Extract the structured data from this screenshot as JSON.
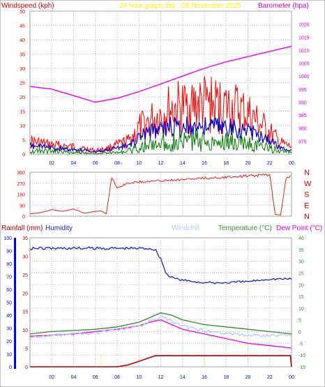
{
  "header": {
    "windspeed_label": "Windspeed (kph)",
    "graph_title": "24 hour graph day : 08 November 2025",
    "barometer_label": "Barometer (hpa)"
  },
  "bottom_header": {
    "rainfall_label": "Rainfall (mm)",
    "humidity_label": "Humidity",
    "windchill_label": "Windchill",
    "temperature_label": "Temperature (°C)",
    "dewpoint_label": "Dew Point (°C)"
  },
  "colors": {
    "gust": "#ff0000",
    "average": "#0000cc",
    "wind_low": "#007700",
    "barometer": "#ee00ee",
    "direction": "#dd2222",
    "humidity": "#2222bb",
    "temperature": "#338833",
    "dewpoint": "#ee00ee",
    "windchill": "#aaccee",
    "rainfall": "#aa0000",
    "title": "#ffee00",
    "grid": "#b0b0b0"
  },
  "chart_data": [
    {
      "type": "line",
      "name": "wind-barometer",
      "x_ticks": [
        "02",
        "04",
        "06",
        "08",
        "10",
        "12",
        "14",
        "16",
        "18",
        "20",
        "22",
        "00"
      ],
      "y_left_ticks": [
        "0",
        "5",
        "10",
        "15",
        "20",
        "25",
        "30",
        "35",
        "40",
        "45",
        "50"
      ],
      "y_left_range": [
        0,
        50
      ],
      "y_right_ticks": [
        "975",
        "980",
        "985",
        "990",
        "995",
        "1000",
        "1005",
        "1010",
        "1015",
        "1020"
      ],
      "y_right_range": [
        970,
        1025
      ],
      "series": [
        {
          "name": "Windspeed (kph)",
          "key": "gust",
          "x": [
            0,
            2,
            4,
            5,
            6,
            7,
            8,
            9,
            10,
            11,
            12,
            13,
            14,
            15,
            16,
            17,
            18,
            19,
            20,
            21,
            22,
            23,
            24
          ],
          "y": [
            7,
            5,
            4,
            3,
            2,
            3,
            5,
            7,
            14,
            18,
            22,
            25,
            26,
            27,
            28,
            27,
            26,
            25,
            22,
            17,
            12,
            6,
            4
          ]
        },
        {
          "name": "Windspeed (kph)",
          "key": "average",
          "x": [
            0,
            2,
            4,
            5,
            6,
            7,
            8,
            9,
            10,
            11,
            12,
            13,
            14,
            15,
            16,
            17,
            18,
            19,
            20,
            21,
            22,
            23,
            24
          ],
          "y": [
            4,
            3,
            2,
            2,
            1,
            2,
            3,
            4,
            8,
            11,
            12,
            13,
            13,
            14,
            13,
            14,
            13,
            12,
            11,
            9,
            7,
            3,
            2
          ]
        },
        {
          "name": "Windspeed (kph)",
          "key": "wind_low",
          "x": [
            0,
            2,
            4,
            5,
            6,
            7,
            8,
            9,
            10,
            11,
            12,
            13,
            14,
            15,
            16,
            17,
            18,
            19,
            20,
            21,
            22,
            23,
            24
          ],
          "y": [
            2,
            2,
            1,
            1,
            0,
            1,
            1,
            2,
            4,
            6,
            7,
            8,
            8,
            9,
            8,
            9,
            8,
            7,
            7,
            5,
            4,
            2,
            1
          ]
        },
        {
          "name": "Barometer (hpa)",
          "key": "barometer",
          "x": [
            0,
            2,
            4,
            6,
            8,
            10,
            12,
            14,
            16,
            18,
            20,
            22,
            24
          ],
          "y": [
            996,
            995,
            992.5,
            990,
            991.5,
            994,
            997,
            1000,
            1003,
            1005.5,
            1007.5,
            1009.5,
            1011.5
          ]
        }
      ]
    },
    {
      "type": "line",
      "name": "wind-direction",
      "x_ticks": [
        "02",
        "04",
        "06",
        "08",
        "10",
        "12",
        "14",
        "16",
        "18",
        "20",
        "22",
        "00"
      ],
      "y_left_ticks": [
        "0",
        "90",
        "180",
        "270",
        "360"
      ],
      "y_right_ticks": [
        "N",
        "E",
        "S",
        "W",
        "N"
      ],
      "y_range": [
        0,
        360
      ],
      "series": [
        {
          "name": "Wind direction",
          "key": "direction",
          "x": [
            0,
            1,
            2,
            3,
            4,
            5,
            6,
            6.5,
            7,
            7.5,
            8,
            9,
            10,
            12,
            14,
            16,
            18,
            20,
            22,
            22.5,
            23,
            23.5,
            24
          ],
          "y": [
            20,
            30,
            55,
            40,
            60,
            25,
            40,
            45,
            20,
            330,
            240,
            280,
            290,
            300,
            310,
            320,
            330,
            340,
            350,
            15,
            10,
            320,
            340
          ]
        }
      ]
    },
    {
      "type": "line",
      "name": "rain-humidity-temperature",
      "x_ticks": [
        "02",
        "04",
        "06",
        "08",
        "10",
        "12",
        "14",
        "16",
        "18",
        "20",
        "22",
        "00"
      ],
      "y_rain_ticks": [
        "0",
        "5",
        "10",
        "15",
        "20",
        "25",
        "30",
        "35"
      ],
      "y_rain_range": [
        0,
        35
      ],
      "y_humidity_ticks": [
        "0",
        "10",
        "20",
        "30",
        "40",
        "50",
        "60",
        "70",
        "80",
        "90",
        "100"
      ],
      "y_humidity_range": [
        0,
        100
      ],
      "y_temp_ticks": [
        "-15",
        "-10",
        "-5",
        "0",
        "5",
        "10",
        "15",
        "20",
        "25",
        "30",
        "35",
        "40"
      ],
      "y_temp_range": [
        -15,
        40
      ],
      "series": [
        {
          "name": "Humidity",
          "key": "humidity",
          "x": [
            0,
            2,
            4,
            6,
            8,
            10,
            11,
            11.5,
            12,
            12.5,
            13,
            14,
            16,
            18,
            20,
            22,
            24
          ],
          "y": [
            93,
            93,
            93,
            93,
            93,
            93,
            93,
            92,
            85,
            73,
            70,
            68,
            66,
            66,
            67,
            69,
            69
          ]
        },
        {
          "name": "Temperature (°C)",
          "key": "temperature",
          "x": [
            0,
            2,
            4,
            6,
            8,
            10,
            11,
            12,
            13,
            14,
            16,
            18,
            20,
            22,
            24
          ],
          "y": [
            -1,
            0,
            0.5,
            1,
            2,
            4,
            6,
            8,
            7,
            5,
            3,
            2,
            1,
            0,
            -1
          ]
        },
        {
          "name": "Dew Point (°C)",
          "key": "dewpoint",
          "x": [
            0,
            2,
            4,
            6,
            8,
            10,
            11,
            12,
            13,
            14,
            16,
            18,
            20,
            22,
            24
          ],
          "y": [
            -2,
            -1.5,
            -1,
            0,
            1,
            2.5,
            4,
            5,
            3,
            1,
            -1,
            -3,
            -5,
            -6,
            -7
          ]
        },
        {
          "name": "Windchill",
          "key": "windchill",
          "x": [
            0,
            2,
            4,
            6,
            8,
            10,
            11,
            12,
            13,
            14,
            16,
            18,
            20,
            22,
            24
          ],
          "y": [
            -2,
            -1,
            -0.5,
            0,
            1.5,
            3,
            5,
            7,
            5,
            3,
            1,
            0,
            -1,
            -1,
            -1
          ]
        },
        {
          "name": "Rainfall (mm)",
          "key": "rainfall",
          "x": [
            0,
            2,
            4,
            6,
            8,
            9,
            10,
            11,
            11.5,
            12,
            14,
            16,
            18,
            20,
            22,
            23.9,
            24
          ],
          "y": [
            0,
            0,
            0,
            0,
            0,
            0.5,
            1.5,
            2.5,
            3,
            3,
            3,
            3,
            3,
            3,
            3,
            3,
            0
          ]
        }
      ]
    }
  ]
}
